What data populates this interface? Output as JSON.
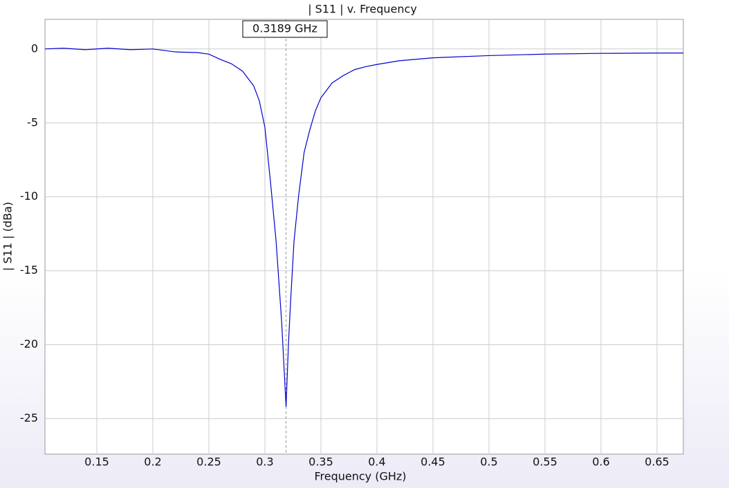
{
  "chart_data": {
    "type": "line",
    "title": "| S11 | v. Frequency",
    "x_label": "Frequency (GHz)",
    "y_label": "| S11 | (dBa)",
    "xlim": [
      0.1037,
      0.6735
    ],
    "ylim": [
      -27.4,
      2
    ],
    "xticks": [
      0.15,
      0.2,
      0.25,
      0.3,
      0.35,
      0.4,
      0.45,
      0.5,
      0.55,
      0.6,
      0.65
    ],
    "yticks": [
      0,
      -5,
      -10,
      -15,
      -20,
      -25
    ],
    "grid": true,
    "marker": {
      "x": 0.3189,
      "label": "0.3189 GHz"
    },
    "x": [
      0.1037,
      0.12,
      0.14,
      0.16,
      0.18,
      0.2,
      0.22,
      0.24,
      0.25,
      0.26,
      0.27,
      0.28,
      0.29,
      0.295,
      0.3,
      0.305,
      0.31,
      0.315,
      0.3189,
      0.321,
      0.323,
      0.326,
      0.33,
      0.335,
      0.34,
      0.345,
      0.35,
      0.36,
      0.37,
      0.38,
      0.39,
      0.4,
      0.42,
      0.45,
      0.5,
      0.55,
      0.6,
      0.65,
      0.6735
    ],
    "series": [
      {
        "name": "| S11 |",
        "color": "#0000cc",
        "values": [
          0,
          0.05,
          -0.05,
          0.05,
          -0.05,
          0,
          -0.2,
          -0.25,
          -0.35,
          -0.7,
          -1.0,
          -1.5,
          -2.5,
          -3.5,
          -5.3,
          -9,
          -13,
          -18.5,
          -24.2,
          -20,
          -17,
          -13,
          -10,
          -7,
          -5.5,
          -4.2,
          -3.3,
          -2.3,
          -1.8,
          -1.4,
          -1.2,
          -1.05,
          -0.8,
          -0.6,
          -0.45,
          -0.35,
          -0.3,
          -0.28,
          -0.28
        ]
      }
    ]
  }
}
